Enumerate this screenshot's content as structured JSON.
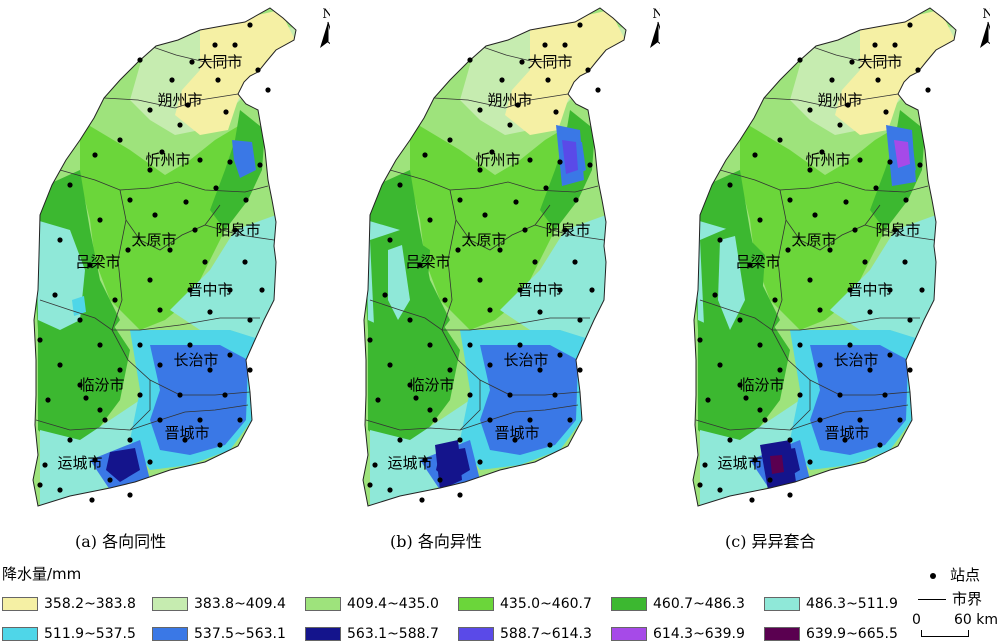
{
  "panels": [
    {
      "caption": "(a) 各向同性"
    },
    {
      "caption": "(b) 各向异性"
    },
    {
      "caption": "(c) 异异套合"
    }
  ],
  "north_label": "N",
  "cities": [
    "大同市",
    "朔州市",
    "忻州市",
    "太原市",
    "阳泉市",
    "吕梁市",
    "晋中市",
    "长治市",
    "临汾市",
    "晋城市",
    "运城市"
  ],
  "legend": {
    "title": "降水量/mm",
    "classes": [
      {
        "label": "358.2~383.8",
        "color": "#f5f0a4"
      },
      {
        "label": "383.8~409.4",
        "color": "#c6ecb0"
      },
      {
        "label": "409.4~435.0",
        "color": "#9ee37c"
      },
      {
        "label": "435.0~460.7",
        "color": "#6bd63a"
      },
      {
        "label": "460.7~486.3",
        "color": "#3cb830"
      },
      {
        "label": "486.3~511.9",
        "color": "#8fe8d8"
      },
      {
        "label": "511.9~537.5",
        "color": "#4fd6e8"
      },
      {
        "label": "537.5~563.1",
        "color": "#3a78e6"
      },
      {
        "label": "563.1~588.7",
        "color": "#14148c"
      },
      {
        "label": "588.7~614.3",
        "color": "#5a4ae8"
      },
      {
        "label": "614.3~639.9",
        "color": "#a64ae8"
      },
      {
        "label": "639.9~665.5",
        "color": "#5a0050"
      }
    ]
  },
  "key": {
    "station": "站点",
    "boundary": "市界",
    "scale_zero": "0",
    "scale_end": "60 km"
  }
}
